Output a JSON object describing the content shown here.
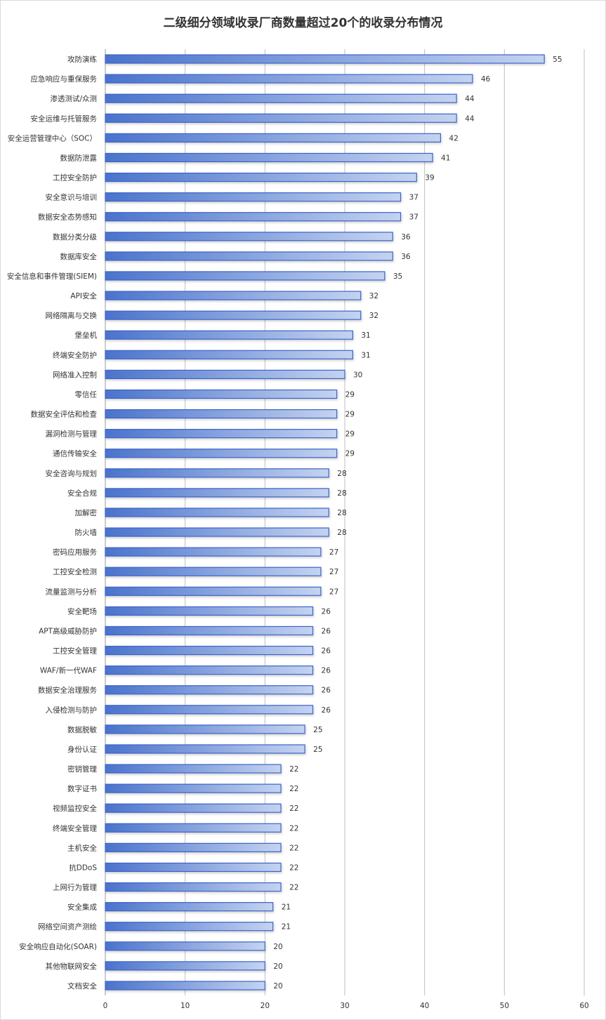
{
  "chart_data": {
    "type": "bar",
    "orientation": "horizontal",
    "title": "二级细分领域收录厂商数量超过20个的收录分布情况",
    "xlabel": "",
    "ylabel": "",
    "xlim": [
      0,
      60
    ],
    "xticks": [
      0,
      10,
      20,
      30,
      40,
      50,
      60
    ],
    "grid": true,
    "legend": "none",
    "bar_color_start": "#4a73cc",
    "bar_color_end": "#c4d3f0",
    "bar_border": "#3c64c8",
    "categories": [
      "攻防演练",
      "应急响应与重保服务",
      "渗透测试/众测",
      "安全运维与托管服务",
      "安全运营管理中心（SOC）",
      "数据防泄露",
      "工控安全防护",
      "安全意识与培训",
      "数据安全态势感知",
      "数据分类分级",
      "数据库安全",
      "安全信息和事件管理(SIEM)",
      "API安全",
      "网络隔离与交换",
      "堡垒机",
      "终端安全防护",
      "网络准入控制",
      "零信任",
      "数据安全评估和检查",
      "漏洞检测与管理",
      "通信传输安全",
      "安全咨询与规划",
      "安全合规",
      "加解密",
      "防火墙",
      "密码应用服务",
      "工控安全检测",
      "流量监测与分析",
      "安全靶场",
      "APT高级威胁防护",
      "工控安全管理",
      "WAF/新一代WAF",
      "数据安全治理服务",
      "入侵检测与防护",
      "数据脱敏",
      "身份认证",
      "密钥管理",
      "数字证书",
      "视频监控安全",
      "终端安全管理",
      "主机安全",
      "抗DDoS",
      "上网行为管理",
      "安全集成",
      "网络空间资产测绘",
      "安全响应自动化(SOAR)",
      "其他物联网安全",
      "文档安全"
    ],
    "values": [
      55,
      46,
      44,
      44,
      42,
      41,
      39,
      37,
      37,
      36,
      36,
      35,
      32,
      32,
      31,
      31,
      30,
      29,
      29,
      29,
      29,
      28,
      28,
      28,
      28,
      27,
      27,
      27,
      26,
      26,
      26,
      26,
      26,
      26,
      25,
      25,
      22,
      22,
      22,
      22,
      22,
      22,
      22,
      21,
      21,
      20,
      20,
      20
    ]
  }
}
